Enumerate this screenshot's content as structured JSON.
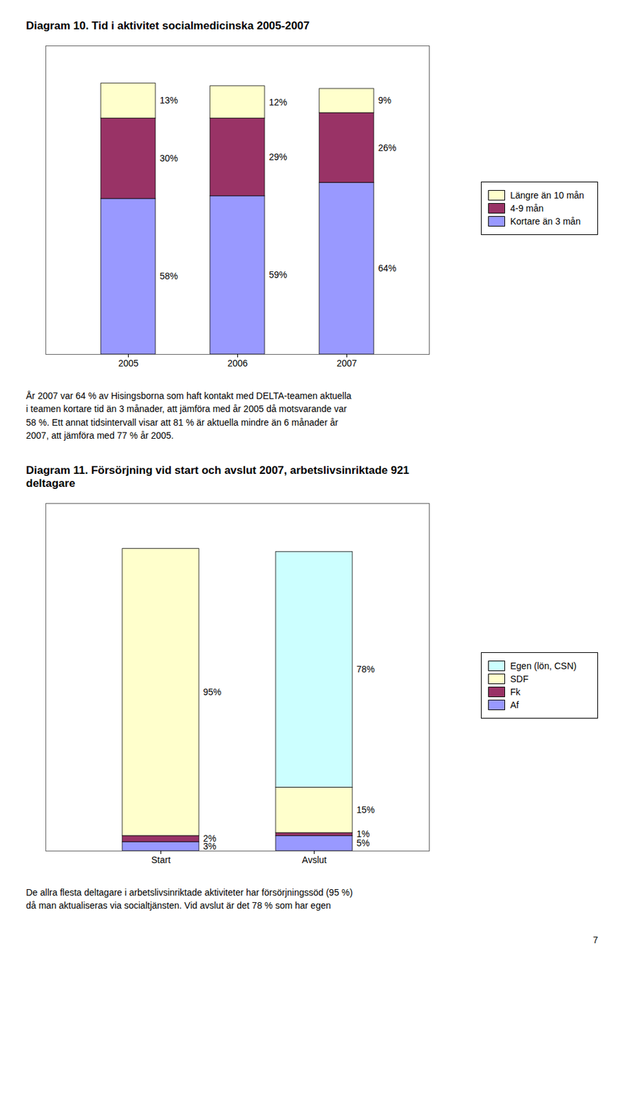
{
  "chart_data": [
    {
      "type": "bar",
      "stacked": true,
      "title": "Diagram 10. Tid i aktivitet socialmedicinska 2005-2007",
      "categories": [
        "2005",
        "2006",
        "2007"
      ],
      "series": [
        {
          "name": "Kortare än 3 mån",
          "color": "#9999FF",
          "values": [
            58,
            59,
            64
          ],
          "value_labels": [
            "58%",
            "59%",
            "64%"
          ]
        },
        {
          "name": "4-9 mån",
          "color": "#993366",
          "values": [
            30,
            29,
            26
          ],
          "value_labels": [
            "30%",
            "29%",
            "26%"
          ]
        },
        {
          "name": "Längre än 10 mån",
          "color": "#FFFFCC",
          "values": [
            13,
            12,
            9
          ],
          "value_labels": [
            "13%",
            "12%",
            "9%"
          ]
        }
      ],
      "ylim": [
        0,
        115
      ],
      "yticks": [],
      "tick_labels": "x",
      "data_labels": true,
      "legend": "right",
      "annotations": [
        "År 2007 var 64 % av Hisingsborna som haft kontakt med DELTA-teamen aktuella\ni teamen kortare tid än 3 månader, att jämföra med år 2005 då motsvarande var\n58 %. Ett annat tidsintervall visar att 81 % är aktuella mindre än 6 månader år\n2007, att jämföra med 77 % år 2005."
      ]
    },
    {
      "type": "bar",
      "stacked": true,
      "title": "Diagram 11. Försörjning vid start och avslut 2007, arbetslivsinriktade 921\ndeltagare",
      "categories": [
        "Start",
        "Avslut"
      ],
      "series": [
        {
          "name": "Af",
          "color": "#9999FF",
          "values": [
            3,
            5
          ],
          "value_labels": [
            "3%",
            "5%"
          ]
        },
        {
          "name": "Fk",
          "color": "#993366",
          "values": [
            2,
            1
          ],
          "value_labels": [
            "2%",
            "1%"
          ]
        },
        {
          "name": "SDF",
          "color": "#FFFFCC",
          "values": [
            95,
            15
          ],
          "value_labels": [
            "95%",
            "15%"
          ]
        },
        {
          "name": "Egen (lön, CSN)",
          "color": "#CCFFFF",
          "values": [
            0,
            78
          ],
          "value_labels": [
            null,
            "78%"
          ]
        }
      ],
      "ylim": [
        0,
        115
      ],
      "yticks": [],
      "tick_labels": "x",
      "data_labels": true,
      "legend": "right",
      "annotations": [
        "De allra flesta deltagare i arbetslivsinriktade aktiviteter har försörjningssöd (95 %)\ndå man aktualiseras via socialtjänsten. Vid avslut är det 78 % som har egen",
        "7"
      ]
    }
  ]
}
